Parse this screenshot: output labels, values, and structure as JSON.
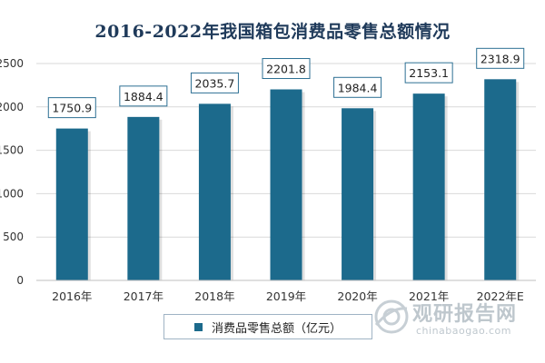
{
  "chart_data": {
    "type": "bar",
    "title": "2016-2022年我国箱包消费品零售总额情况",
    "categories": [
      "2016年",
      "2017年",
      "2018年",
      "2019年",
      "2020年",
      "2021年",
      "2022年E"
    ],
    "series": [
      {
        "name": "消费品零售总额（亿元）",
        "values": [
          1750.9,
          1884.4,
          2035.7,
          2201.8,
          1984.4,
          2153.1,
          2318.9
        ]
      }
    ],
    "data_labels": [
      "1750.9",
      "1884.4",
      "2035.7",
      "2201.8",
      "1984.4",
      "2153.1",
      "2318.9"
    ],
    "yticks": [
      "0",
      "500",
      "1000",
      "1500",
      "2000",
      "2500"
    ],
    "ylim": [
      0,
      2500
    ],
    "grid": true,
    "legend_position": "bottom",
    "bar_color": "#1c6a8c"
  },
  "watermark": {
    "name_cn": "观研报告网",
    "domain": "chinabaogao.com"
  }
}
